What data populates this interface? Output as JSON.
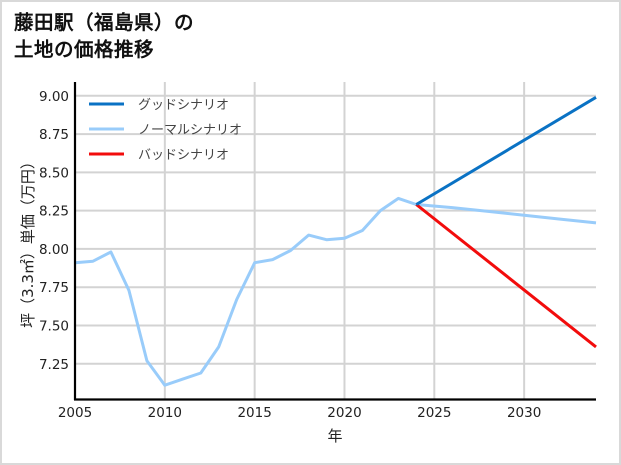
{
  "title_line1": "藤田駅（福島県）の",
  "title_line2": "土地の価格推移",
  "chart_data": {
    "type": "line",
    "title": "藤田駅（福島県）の土地の価格推移",
    "xlabel": "年",
    "ylabel": "坪（3.3㎡）単価（万円）",
    "xlim": [
      2005,
      2034
    ],
    "ylim": [
      7.02,
      9.09
    ],
    "xticks": [
      2005,
      2010,
      2015,
      2020,
      2025,
      2030
    ],
    "xtick_labels": [
      "2005",
      "2010",
      "2015",
      "2020",
      "2025",
      "2030"
    ],
    "yticks": [
      7.25,
      7.5,
      7.75,
      8.0,
      8.25,
      8.5,
      8.75,
      9.0
    ],
    "ytick_labels": [
      "7.25",
      "7.50",
      "7.75",
      "8.00",
      "8.25",
      "8.50",
      "8.75",
      "9.00"
    ],
    "grid": true,
    "legend_position": "upper left",
    "series": [
      {
        "name": "グッドシナリオ",
        "color": "#0a72c4",
        "x": [
          2024,
          2034
        ],
        "values": [
          8.29,
          8.99
        ]
      },
      {
        "name": "ノーマルシナリオ",
        "color": "#99ccfa",
        "x": [
          2005,
          2006,
          2007,
          2008,
          2009,
          2010,
          2011,
          2012,
          2013,
          2014,
          2015,
          2016,
          2017,
          2018,
          2019,
          2020,
          2021,
          2022,
          2023,
          2024,
          2026,
          2028,
          2030,
          2032,
          2034
        ],
        "values": [
          7.91,
          7.92,
          7.98,
          7.73,
          7.27,
          7.11,
          7.15,
          7.19,
          7.36,
          7.67,
          7.91,
          7.93,
          7.99,
          8.09,
          8.06,
          8.07,
          8.12,
          8.25,
          8.33,
          8.29,
          8.27,
          8.245,
          8.22,
          8.195,
          8.17
        ]
      },
      {
        "name": "バッドシナリオ",
        "color": "#f20c0c",
        "x": [
          2024,
          2034
        ],
        "values": [
          8.29,
          7.36
        ]
      }
    ]
  }
}
